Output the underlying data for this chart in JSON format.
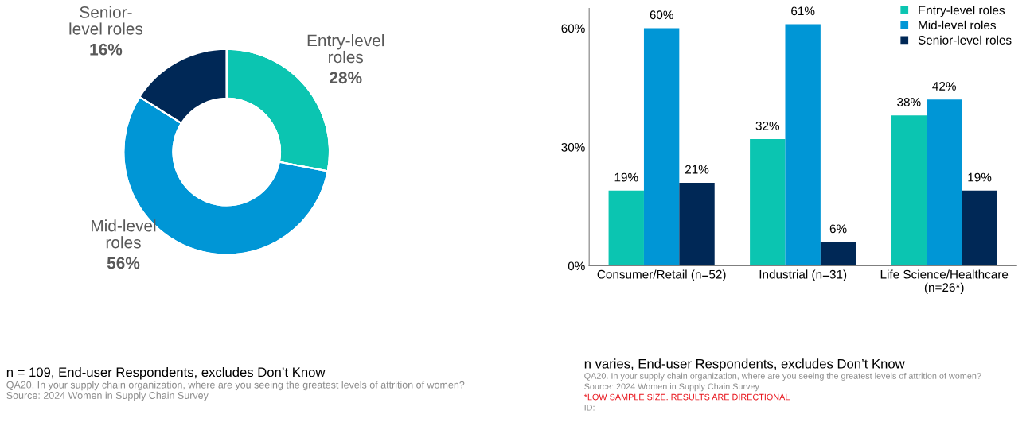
{
  "chart_data": [
    {
      "type": "donut",
      "categories": [
        "Entry-level\nroles",
        "Mid-level\nroles",
        "Senior-\nlevel roles"
      ],
      "values": [
        28,
        56,
        16
      ],
      "value_labels": [
        "28%",
        "56%",
        "16%"
      ],
      "colors": [
        "#0bc5b1",
        "#0096d6",
        "#002856"
      ],
      "annotations": [
        "n = 109, End-user Respondents, excludes Don’t Know",
        "QA20. In your supply chain organization, where are you seeing the greatest levels of attrition of women?",
        "Source: 2024 Women in Supply Chain Survey"
      ]
    },
    {
      "type": "bar",
      "categories": [
        "Consumer/Retail (n=52)",
        "Industrial (n=31)",
        "Life Science/Healthcare\n(n=26*)"
      ],
      "series": [
        {
          "name": "Entry-level roles",
          "color": "#0bc5b1",
          "values": [
            19,
            32,
            38
          ],
          "value_labels": [
            "19%",
            "32%",
            "38%"
          ]
        },
        {
          "name": "Mid-level roles",
          "color": "#0096d6",
          "values": [
            60,
            61,
            42
          ],
          "value_labels": [
            "60%",
            "61%",
            "42%"
          ]
        },
        {
          "name": "Senior-level roles",
          "color": "#002856",
          "values": [
            21,
            6,
            19
          ],
          "value_labels": [
            "21%",
            "6%",
            "19%"
          ]
        }
      ],
      "ylim": [
        0,
        65
      ],
      "yticks": [
        {
          "value": 0,
          "label": "0%"
        },
        {
          "value": 30,
          "label": "30%"
        },
        {
          "value": 60,
          "label": "60%"
        }
      ],
      "grid": false,
      "legend": "top right",
      "annotations": [
        "n varies, End-user Respondents, excludes Don’t Know",
        "QA20. In your supply chain organization, where are you seeing the greatest levels of attrition of women?",
        "Source: 2024 Women in Supply Chain Survey",
        "*LOW SAMPLE SIZE. RESULTS ARE DIRECTIONAL",
        "ID:"
      ]
    }
  ]
}
